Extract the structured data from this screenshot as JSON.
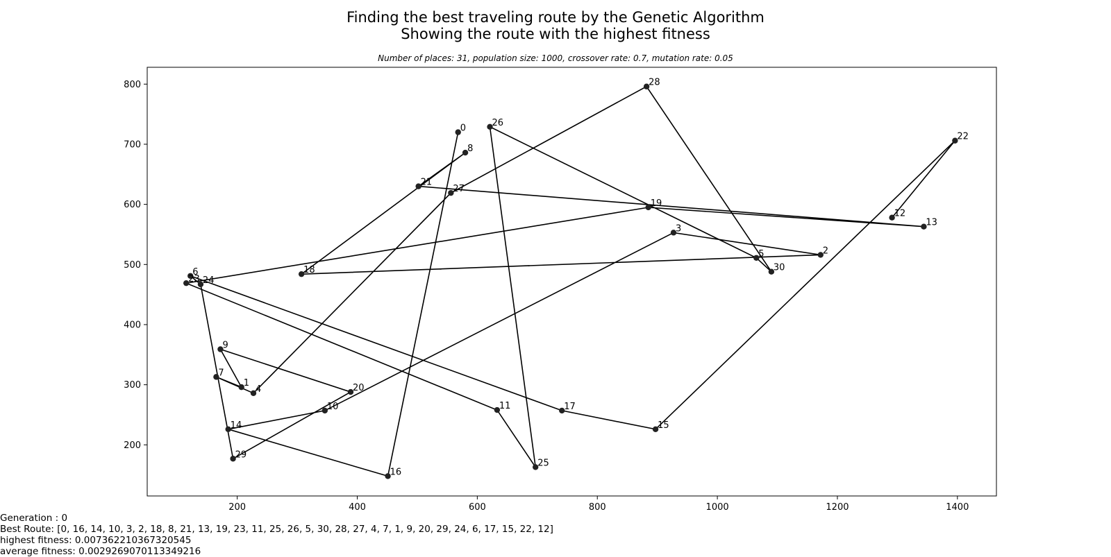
{
  "chart_data": {
    "type": "scatter",
    "title": "Finding the best traveling route by the Genetic Algorithm",
    "title_line2": "Showing the route with the highest fitness",
    "subtitle": "Number of places: 31, population size: 1000, crossover rate: 0.7, mutation rate: 0.05",
    "xlim": [
      50,
      1465
    ],
    "ylim": [
      115,
      828
    ],
    "x_ticks": [
      200,
      400,
      600,
      800,
      1000,
      1200,
      1400
    ],
    "y_ticks": [
      200,
      300,
      400,
      500,
      600,
      700,
      800
    ],
    "grid": false,
    "line_color": "#000000",
    "point_color": "#222222",
    "points": [
      {
        "id": "0",
        "x": 568,
        "y": 720
      },
      {
        "id": "1",
        "x": 207,
        "y": 296
      },
      {
        "id": "2",
        "x": 1172,
        "y": 516
      },
      {
        "id": "3",
        "x": 927,
        "y": 553
      },
      {
        "id": "4",
        "x": 227,
        "y": 286
      },
      {
        "id": "5",
        "x": 1065,
        "y": 511
      },
      {
        "id": "6",
        "x": 122,
        "y": 481
      },
      {
        "id": "7",
        "x": 165,
        "y": 313
      },
      {
        "id": "8",
        "x": 580,
        "y": 686
      },
      {
        "id": "9",
        "x": 172,
        "y": 359
      },
      {
        "id": "10",
        "x": 346,
        "y": 257
      },
      {
        "id": "11",
        "x": 633,
        "y": 258
      },
      {
        "id": "12",
        "x": 1291,
        "y": 578
      },
      {
        "id": "13",
        "x": 1344,
        "y": 563
      },
      {
        "id": "14",
        "x": 185,
        "y": 226
      },
      {
        "id": "15",
        "x": 897,
        "y": 226
      },
      {
        "id": "16",
        "x": 451,
        "y": 148
      },
      {
        "id": "17",
        "x": 741,
        "y": 257
      },
      {
        "id": "18",
        "x": 307,
        "y": 484
      },
      {
        "id": "19",
        "x": 885,
        "y": 595
      },
      {
        "id": "20",
        "x": 389,
        "y": 288
      },
      {
        "id": "21",
        "x": 502,
        "y": 630
      },
      {
        "id": "22",
        "x": 1396,
        "y": 706
      },
      {
        "id": "23",
        "x": 115,
        "y": 469
      },
      {
        "id": "24",
        "x": 139,
        "y": 467
      },
      {
        "id": "25",
        "x": 697,
        "y": 163
      },
      {
        "id": "26",
        "x": 621,
        "y": 729
      },
      {
        "id": "27",
        "x": 556,
        "y": 619
      },
      {
        "id": "28",
        "x": 882,
        "y": 796
      },
      {
        "id": "29",
        "x": 193,
        "y": 177
      },
      {
        "id": "30",
        "x": 1090,
        "y": 488
      }
    ],
    "route": [
      0,
      16,
      14,
      10,
      3,
      2,
      18,
      8,
      21,
      13,
      19,
      23,
      11,
      25,
      26,
      5,
      30,
      28,
      27,
      4,
      7,
      1,
      9,
      20,
      29,
      24,
      6,
      17,
      15,
      22,
      12
    ]
  },
  "info": {
    "generation": "Generation : 0",
    "best_route": "Best Route: [0, 16, 14, 10, 3, 2, 18, 8, 21, 13, 19, 23, 11, 25, 26, 5, 30, 28, 27, 4, 7, 1, 9, 20, 29, 24, 6, 17, 15, 22, 12]",
    "highest_fitness": "highest fitness: 0.007362210367320545",
    "average_fitness": "average fitness: 0.0029269070113349216"
  }
}
